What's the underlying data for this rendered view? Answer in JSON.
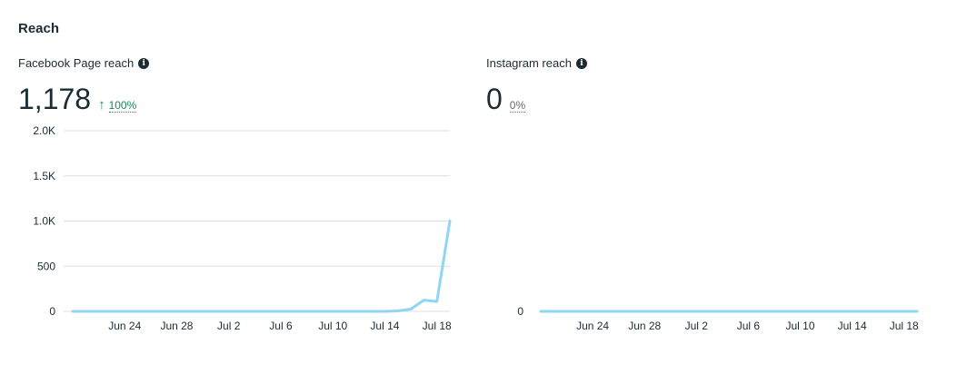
{
  "section": {
    "title": "Reach"
  },
  "colors": {
    "line": "#8fd6f5",
    "grid": "#dcdfe3",
    "up": "#1a8754"
  },
  "facebook": {
    "label": "Facebook Page reach",
    "info_icon": "info-icon",
    "value": "1,178",
    "change_arrow": "↑",
    "change_pct": "100%"
  },
  "instagram": {
    "label": "Instagram reach",
    "info_icon": "info-icon",
    "value": "0",
    "change_pct": "0%"
  },
  "chart_data": [
    {
      "type": "line",
      "title": "Facebook Page reach",
      "x_ticks": [
        "Jun 24",
        "Jun 28",
        "Jul 2",
        "Jul 6",
        "Jul 10",
        "Jul 14",
        "Jul 18"
      ],
      "y_ticks": [
        "0",
        "500",
        "1.0K",
        "1.5K",
        "2.0K"
      ],
      "y_tick_values": [
        0,
        500,
        1000,
        1500,
        2000
      ],
      "ylim": [
        0,
        2000
      ],
      "x_start": "Jun 20",
      "x_days": 30,
      "series": [
        {
          "name": "Facebook Page reach",
          "values": [
            0,
            0,
            0,
            0,
            0,
            0,
            0,
            0,
            0,
            0,
            0,
            0,
            0,
            0,
            0,
            0,
            0,
            0,
            0,
            0,
            0,
            0,
            0,
            0,
            0,
            5,
            25,
            125,
            110,
            1000
          ]
        }
      ]
    },
    {
      "type": "line",
      "title": "Instagram reach",
      "x_ticks": [
        "Jun 24",
        "Jun 28",
        "Jul 2",
        "Jul 6",
        "Jul 10",
        "Jul 14",
        "Jul 18"
      ],
      "y_ticks": [
        "0"
      ],
      "y_tick_values": [
        0
      ],
      "ylim": [
        0,
        1
      ],
      "x_start": "Jun 20",
      "x_days": 30,
      "series": [
        {
          "name": "Instagram reach",
          "values": [
            0,
            0,
            0,
            0,
            0,
            0,
            0,
            0,
            0,
            0,
            0,
            0,
            0,
            0,
            0,
            0,
            0,
            0,
            0,
            0,
            0,
            0,
            0,
            0,
            0,
            0,
            0,
            0,
            0,
            0
          ]
        }
      ]
    }
  ]
}
